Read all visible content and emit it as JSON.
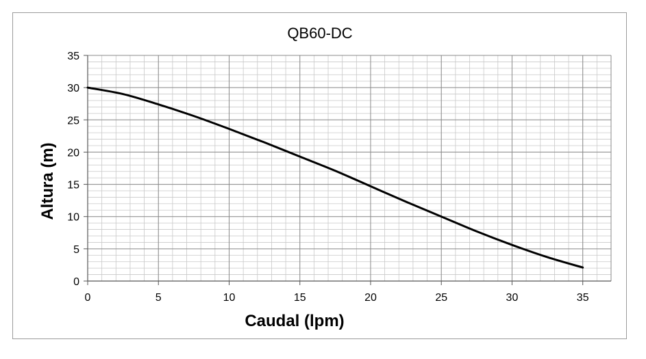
{
  "chart_data": {
    "type": "line",
    "title": "QB60-DC",
    "xlabel": "Caudal (lpm)",
    "ylabel": "Altura (m)",
    "xlim": [
      0,
      37
    ],
    "ylim": [
      0,
      35
    ],
    "xticks": [
      0,
      5,
      10,
      15,
      20,
      25,
      30,
      35
    ],
    "yticks": [
      0,
      5,
      10,
      15,
      20,
      25,
      30,
      35
    ],
    "grid": true,
    "minor_grid": {
      "x_step": 1,
      "y_step": 1
    },
    "line_color": "#000000",
    "series": [
      {
        "x": [
          0,
          2.5,
          5,
          7.5,
          10,
          12.5,
          15,
          17.5,
          20,
          22.5,
          25,
          27.5,
          30,
          32.5,
          35
        ],
        "values": [
          30,
          29,
          27.4,
          25.6,
          23.6,
          21.5,
          19.3,
          17.1,
          14.7,
          12.3,
          10,
          7.7,
          5.6,
          3.7,
          2.1
        ]
      }
    ]
  }
}
